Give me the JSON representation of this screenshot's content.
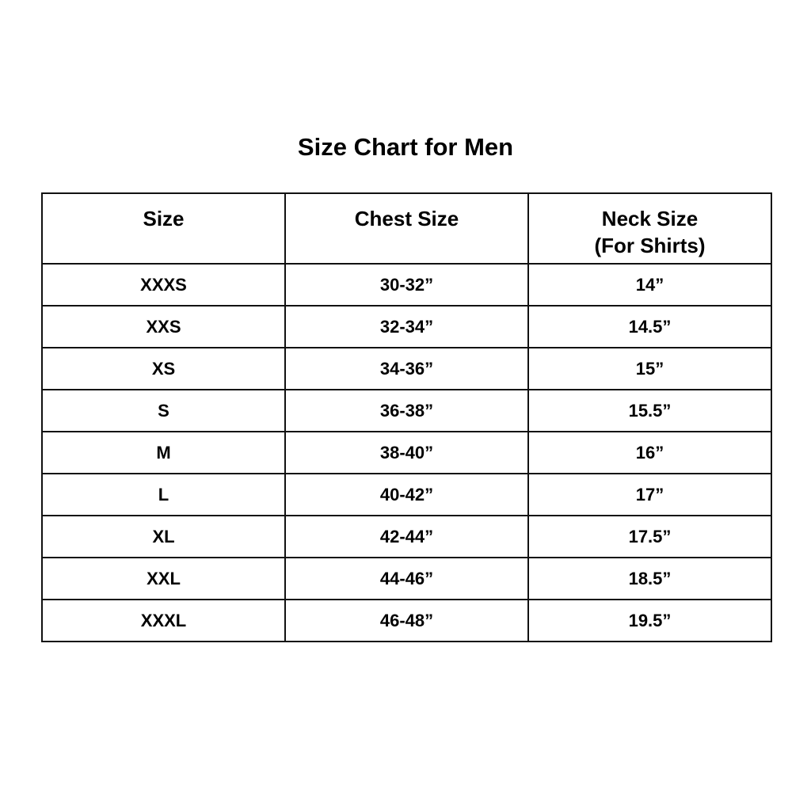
{
  "title": "Size Chart for Men",
  "headers": [
    "Size",
    "Chest Size",
    "Neck Size",
    "(For Shirts)"
  ],
  "rows": [
    [
      "XXXS",
      "30-32”",
      "14”"
    ],
    [
      "XXS",
      "32-34”",
      "14.5”"
    ],
    [
      "XS",
      "34-36”",
      "15”"
    ],
    [
      "S",
      "36-38”",
      "15.5”"
    ],
    [
      "M",
      "38-40”",
      "16”"
    ],
    [
      "L",
      "40-42”",
      "17”"
    ],
    [
      "XL",
      "42-44”",
      "17.5”"
    ],
    [
      "XXL",
      "44-46”",
      "18.5”"
    ],
    [
      "XXXL",
      "46-48”",
      "19.5”"
    ]
  ]
}
